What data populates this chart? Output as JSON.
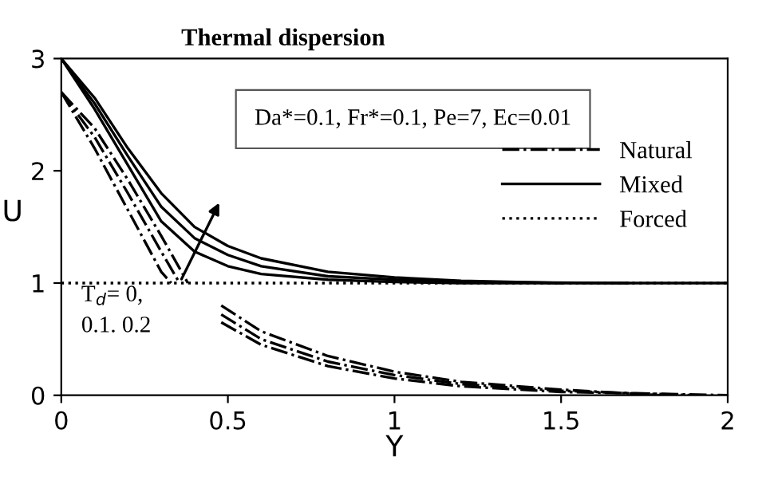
{
  "chart_data": {
    "type": "line",
    "title": "Thermal dispersion",
    "xlabel": "Y",
    "ylabel": "U",
    "xlim": [
      0,
      2
    ],
    "ylim": [
      0,
      3
    ],
    "xticks": [
      0,
      0.5,
      1,
      1.5,
      2
    ],
    "yticks": [
      0,
      1,
      2,
      3
    ],
    "grid": false,
    "legend": "right",
    "marker": "none",
    "annotations": [
      "Da*=0.1, Fr*=0.1, Pe=7, Ec=0.01",
      "T$_{d}$= 0,\n0.1. 0.2"
    ],
    "series": [
      {
        "name": "Natural",
        "color": "#000000",
        "line_style": "dashdot",
        "x": [
          0,
          0.1,
          0.2,
          0.3,
          0.33,
          0.4,
          0.48,
          0.6,
          0.8,
          1.0,
          1.2,
          1.5,
          2
        ],
        "values": [
          2.7,
          2.2,
          1.65,
          1.1,
          1.0,
          null,
          0.65,
          0.45,
          0.26,
          0.15,
          0.08,
          0.03,
          0
        ]
      },
      {
        "color": "#000000",
        "line_style": "dashdot",
        "x": [
          0,
          0.1,
          0.2,
          0.3,
          0.355,
          0.4,
          0.48,
          0.6,
          0.8,
          1.0,
          1.2,
          1.5,
          1.9
        ],
        "values": [
          2.7,
          2.3,
          1.8,
          1.28,
          1.0,
          null,
          0.72,
          0.5,
          0.3,
          0.18,
          0.1,
          0.04,
          0
        ]
      },
      {
        "color": "#000000",
        "line_style": "dashdot",
        "x": [
          0,
          0.1,
          0.2,
          0.3,
          0.38,
          0.42,
          0.48,
          0.6,
          0.8,
          1.0,
          1.2,
          1.5,
          1.8
        ],
        "values": [
          2.7,
          2.38,
          1.92,
          1.42,
          1.0,
          null,
          0.8,
          0.57,
          0.35,
          0.21,
          0.12,
          0.05,
          0
        ]
      },
      {
        "name": "Mixed",
        "color": "#000000",
        "line_style": "solid",
        "x": [
          0,
          0.1,
          0.2,
          0.3,
          0.4,
          0.5,
          0.6,
          0.8,
          1.0,
          1.2,
          1.5,
          2
        ],
        "values": [
          3,
          2.55,
          2.05,
          1.55,
          1.28,
          1.15,
          1.08,
          1.03,
          1.01,
          1.0,
          1.0,
          1.0
        ]
      },
      {
        "color": "#000000",
        "line_style": "solid",
        "x": [
          0,
          0.1,
          0.2,
          0.3,
          0.4,
          0.5,
          0.6,
          0.8,
          1.0,
          1.2,
          1.7
        ],
        "values": [
          3,
          2.6,
          2.13,
          1.68,
          1.4,
          1.25,
          1.15,
          1.06,
          1.03,
          1.01,
          1.0
        ]
      },
      {
        "color": "#000000",
        "line_style": "solid",
        "x": [
          0,
          0.1,
          0.2,
          0.3,
          0.4,
          0.5,
          0.6,
          0.8,
          1.0,
          1.2,
          1.5
        ],
        "values": [
          3,
          2.65,
          2.2,
          1.8,
          1.5,
          1.33,
          1.22,
          1.1,
          1.05,
          1.02,
          1.0
        ]
      },
      {
        "name": "Forced",
        "color": "#000000",
        "line_style": "dotted",
        "x": [
          0,
          2
        ],
        "values": [
          1,
          1
        ]
      }
    ]
  }
}
